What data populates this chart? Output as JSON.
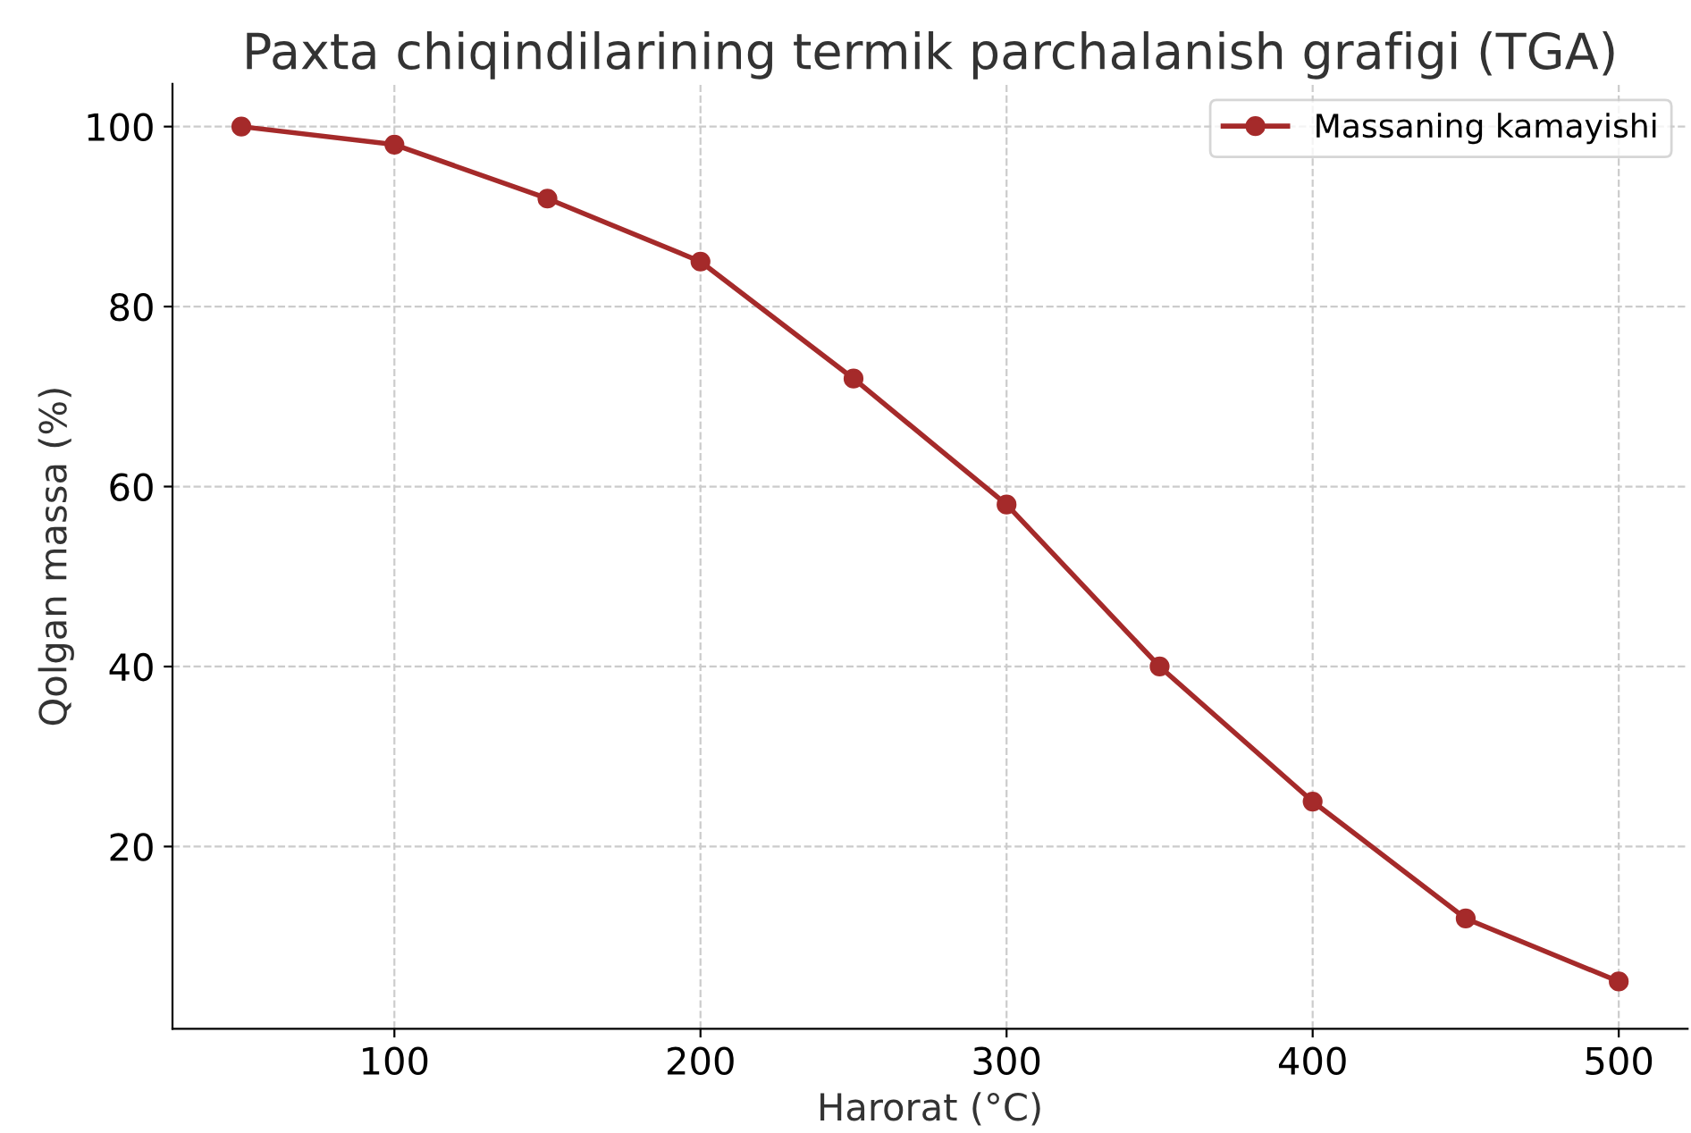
{
  "chart_data": {
    "type": "line",
    "title": "Paxta chiqindilarining termik parchalanish grafigi (TGA)",
    "xlabel": "Harorat (°C)",
    "ylabel": "Qolgan massa (%)",
    "x": [
      50,
      100,
      150,
      200,
      250,
      300,
      350,
      400,
      450,
      500
    ],
    "series": [
      {
        "name": "Massaning kamayishi",
        "color": "#a52a2a",
        "values": [
          100,
          98,
          92,
          85,
          72,
          58,
          40,
          25,
          12,
          5
        ]
      }
    ],
    "xlim": [
      27.5,
      522.5
    ],
    "ylim": [
      -0.25,
      104.75
    ],
    "xticks": [
      100,
      200,
      300,
      400,
      500
    ],
    "yticks": [
      20,
      40,
      60,
      80,
      100
    ],
    "grid": true,
    "legend": "top right",
    "marker": "circle",
    "line_style": "solid"
  }
}
